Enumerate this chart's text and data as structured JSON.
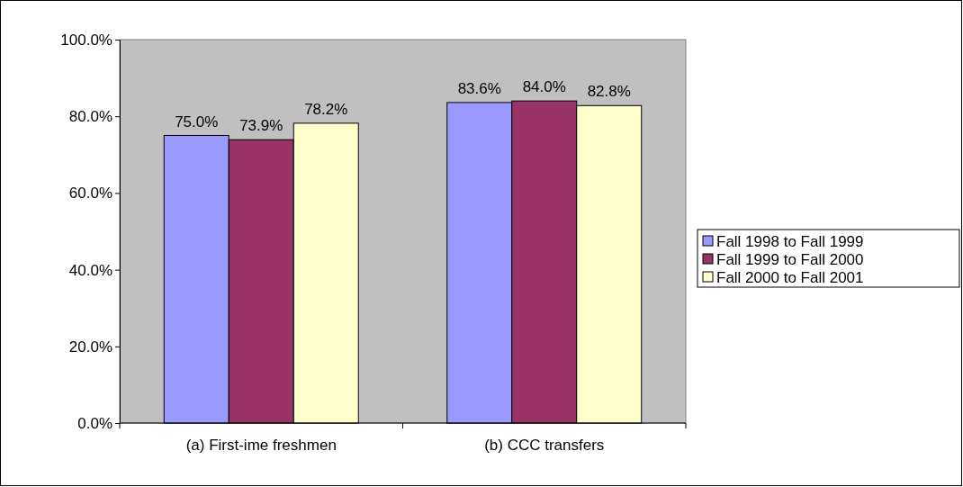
{
  "chart_data": {
    "type": "bar",
    "categories": [
      "(a) First-ime freshmen",
      "(b) CCC transfers"
    ],
    "series": [
      {
        "name": "Fall 1998 to Fall 1999",
        "color": "#9999ff",
        "values": [
          75.0,
          83.6
        ],
        "value_labels": [
          "75.0%",
          "83.6%"
        ]
      },
      {
        "name": "Fall 1999 to Fall 2000",
        "color": "#993366",
        "values": [
          73.9,
          84.0
        ],
        "value_labels": [
          "73.9%",
          "84.0%"
        ]
      },
      {
        "name": "Fall 2000 to Fall 2001",
        "color": "#ffffcc",
        "values": [
          78.2,
          82.8
        ],
        "value_labels": [
          "78.2%",
          "82.8%"
        ]
      }
    ],
    "ylim": [
      0,
      100
    ],
    "yticks": [
      {
        "value": 0,
        "label": "0.0%"
      },
      {
        "value": 20,
        "label": "20.0%"
      },
      {
        "value": 40,
        "label": "40.0%"
      },
      {
        "value": 60,
        "label": "60.0%"
      },
      {
        "value": 80,
        "label": "80.0%"
      },
      {
        "value": 100,
        "label": "100.0%"
      }
    ],
    "legend": "right"
  }
}
